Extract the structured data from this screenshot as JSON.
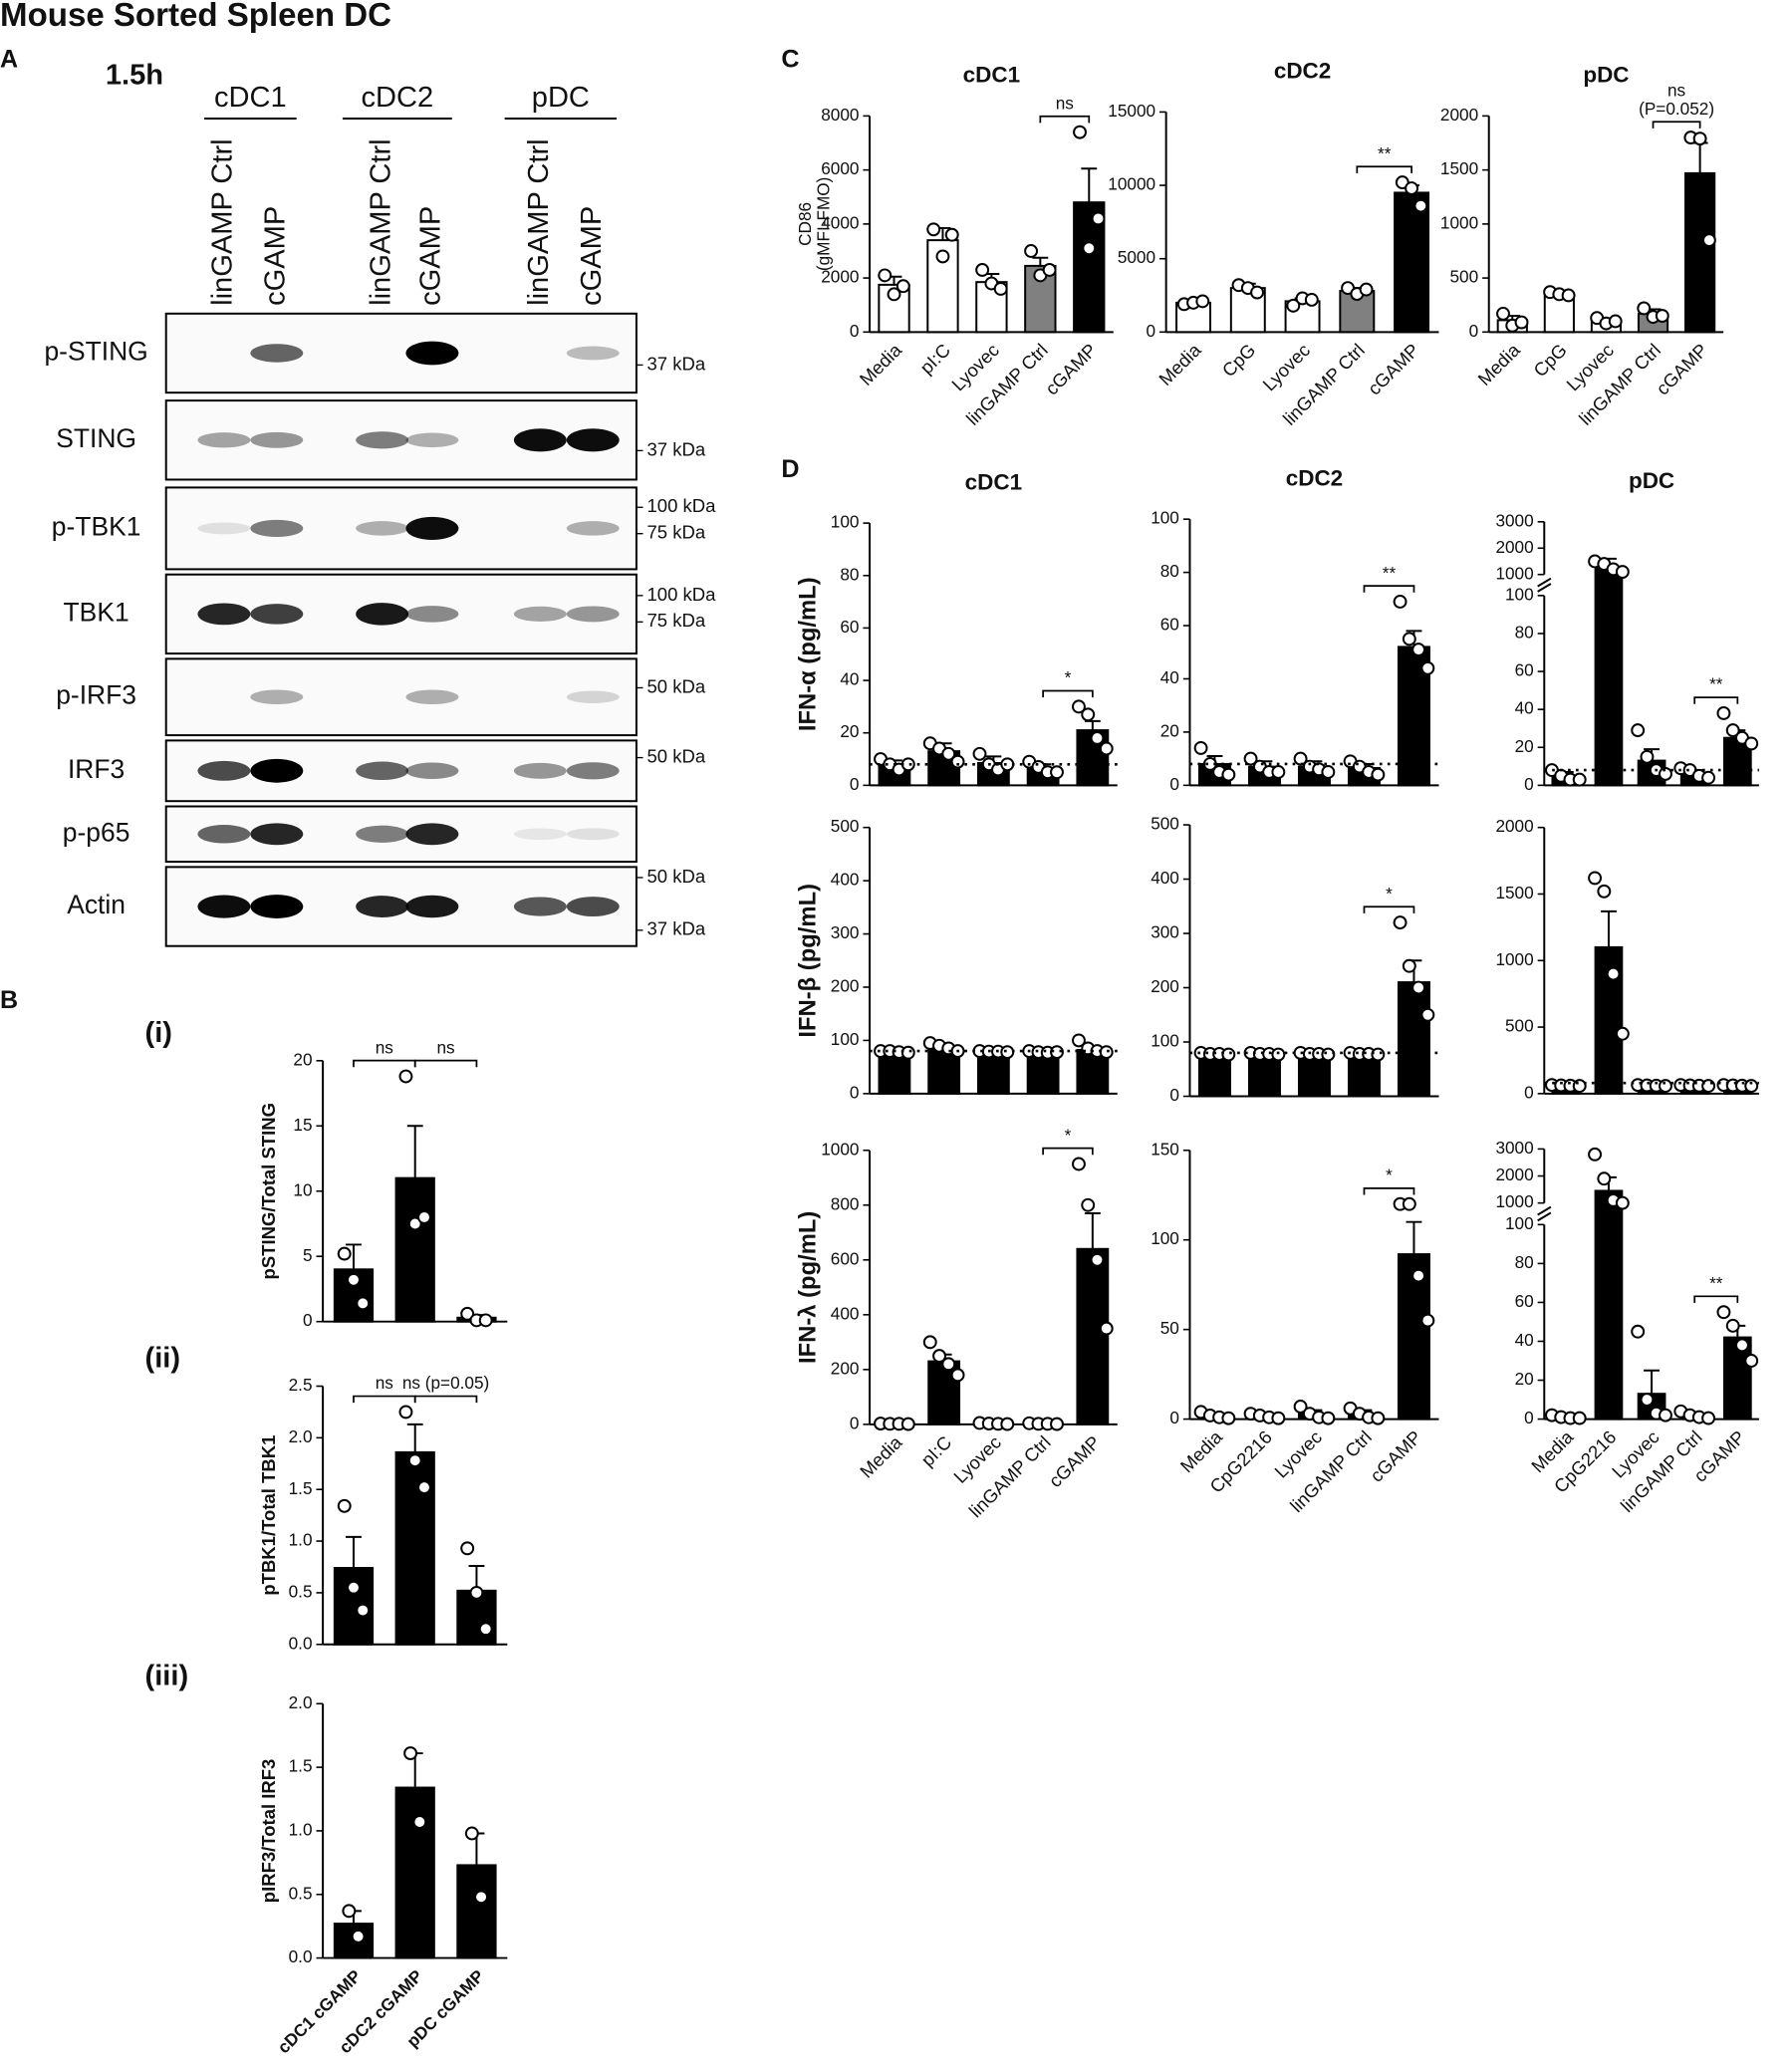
{
  "title": "Mouse Sorted Spleen DC",
  "panels": [
    "A",
    "B",
    "C",
    "D"
  ],
  "blot": {
    "timepoint": "1.5h",
    "groups": [
      "cDC1",
      "cDC2",
      "pDC"
    ],
    "lanes": [
      "linGAMP Ctrl",
      "cGAMP",
      "linGAMP Ctrl",
      "cGAMP",
      "linGAMP Ctrl",
      "cGAMP"
    ],
    "rows": [
      {
        "name": "p-STING",
        "markers": [
          "37 kDa"
        ]
      },
      {
        "name": "STING",
        "markers": [
          "37 kDa"
        ]
      },
      {
        "name": "p-TBK1",
        "markers": [
          "100 kDa",
          "75 kDa"
        ]
      },
      {
        "name": "TBK1",
        "markers": [
          "100 kDa",
          "75 kDa"
        ]
      },
      {
        "name": "p-IRF3",
        "markers": [
          "50 kDa"
        ]
      },
      {
        "name": "IRF3",
        "markers": [
          "50 kDa"
        ]
      },
      {
        "name": "p-p65",
        "markers": []
      },
      {
        "name": "Actin",
        "markers": [
          "50 kDa",
          "37 kDa"
        ]
      }
    ]
  },
  "chart_data": [
    {
      "type": "bar",
      "title": "(i)",
      "y_label": "pSTING/Total STING",
      "color": "#000000",
      "categories": [
        null,
        null,
        null
      ],
      "values": [
        4,
        11,
        0.3
      ],
      "errors": [
        1.9,
        4,
        0.2
      ],
      "points": [
        [
          5.2,
          3.2,
          1.4
        ],
        [
          18.8,
          7.5,
          8
        ],
        [
          0.6,
          0.1,
          0.1
        ]
      ],
      "ylim": [
        0,
        20
      ],
      "yticks": [
        0,
        5,
        10,
        15,
        20
      ],
      "brackets": [
        {
          "pair": [
            0,
            1
          ],
          "text": "ns"
        },
        {
          "pair": [
            1,
            2
          ],
          "text": "ns"
        }
      ]
    },
    {
      "type": "bar",
      "title": "(ii)",
      "y_label": "pTBK1/Total TBK1",
      "color": "#000000",
      "categories": [
        null,
        null,
        null
      ],
      "values": [
        0.74,
        1.86,
        0.52
      ],
      "errors": [
        0.3,
        0.27,
        0.24
      ],
      "points": [
        [
          1.34,
          0.55,
          0.33
        ],
        [
          2.25,
          1.78,
          1.52
        ],
        [
          0.93,
          0.5,
          0.15
        ]
      ],
      "ylim": [
        0,
        2.5
      ],
      "yticks": [
        {
          "value": 0,
          "label": "0.0"
        },
        0.5,
        {
          "value": 1,
          "label": "1.0"
        },
        1.5,
        {
          "value": 2,
          "label": "2.0"
        },
        2.5
      ],
      "brackets": [
        {
          "pair": [
            0,
            1
          ],
          "text": "ns"
        },
        {
          "pair": [
            1,
            2
          ],
          "text": "ns (p=0.05)"
        }
      ]
    },
    {
      "type": "bar",
      "title": "(iii)",
      "y_label": "pIRF3/Total IRF3",
      "color": "#000000",
      "categories": [
        "cDC1 cGAMP",
        "cDC2 cGAMP",
        "pDC cGAMP"
      ],
      "values": [
        0.27,
        1.34,
        0.73
      ],
      "errors": [
        0.1,
        0.27,
        0.25
      ],
      "points": [
        [
          0.37,
          0.17
        ],
        [
          1.61,
          1.07
        ],
        [
          0.98,
          0.48
        ]
      ],
      "ylim": [
        0,
        2
      ],
      "yticks": [
        {
          "value": 0,
          "label": "0.0"
        },
        0.5,
        {
          "value": 1,
          "label": "1.0"
        },
        1.5,
        {
          "value": 2,
          "label": "2.0"
        }
      ]
    },
    {
      "type": "bar",
      "title": "cDC1",
      "y_label": [
        "CD86",
        "(gMFI-FMO)"
      ],
      "colors": [
        "#ffffff",
        "#ffffff",
        "#ffffff",
        "#808080",
        "#000000"
      ],
      "categories": [
        "Media",
        "pI:C",
        "Lyovec",
        "linGAMP Ctrl",
        "cGAMP"
      ],
      "values": [
        1750,
        3400,
        1850,
        2450,
        4800
      ],
      "errors": [
        300,
        450,
        300,
        300,
        1250
      ],
      "points": [
        [
          2100,
          1400,
          1700
        ],
        [
          3800,
          2800,
          3600
        ],
        [
          2300,
          1800,
          1600
        ],
        [
          3000,
          2100,
          2300
        ],
        [
          7400,
          3100,
          4200
        ]
      ],
      "ylim": [
        0,
        8000
      ],
      "yticks": [
        0,
        2000,
        4000,
        6000,
        8000
      ],
      "brackets": [
        {
          "pair": [
            3,
            4
          ],
          "text": "ns"
        }
      ]
    },
    {
      "type": "bar",
      "title": "cDC2",
      "colors": [
        "#ffffff",
        "#ffffff",
        "#ffffff",
        "#808080",
        "#000000"
      ],
      "categories": [
        "Media",
        "CpG",
        "Lyovec",
        "linGAMP Ctrl",
        "cGAMP"
      ],
      "values": [
        2000,
        3000,
        2100,
        2800,
        9500
      ],
      "errors": [
        100,
        300,
        200,
        200,
        500
      ],
      "points": [
        [
          1900,
          2000,
          2100
        ],
        [
          3200,
          3000,
          2700
        ],
        [
          1800,
          2300,
          2200
        ],
        [
          3000,
          2600,
          2900
        ],
        [
          10200,
          9800,
          8600
        ]
      ],
      "ylim": [
        0,
        15000
      ],
      "yticks": [
        0,
        5000,
        10000,
        15000
      ],
      "brackets": [
        {
          "pair": [
            3,
            4
          ],
          "text": "**"
        }
      ]
    },
    {
      "type": "bar",
      "title": "pDC",
      "colors": [
        "#ffffff",
        "#ffffff",
        "#ffffff",
        "#808080",
        "#000000"
      ],
      "categories": [
        "Media",
        "CpG",
        "Lyovec",
        "linGAMP Ctrl",
        "cGAMP"
      ],
      "values": [
        110,
        350,
        100,
        170,
        1470
      ],
      "errors": [
        40,
        20,
        20,
        40,
        280
      ],
      "points": [
        [
          170,
          60,
          90
        ],
        [
          370,
          350,
          340
        ],
        [
          130,
          80,
          100
        ],
        [
          220,
          140,
          150
        ],
        [
          1800,
          1790,
          850
        ]
      ],
      "ylim": [
        0,
        2000
      ],
      "yticks": [
        0,
        500,
        1000,
        1500,
        2000
      ],
      "brackets": [
        {
          "pair": [
            3,
            4
          ],
          "text": [
            "ns",
            "(P=0.052)"
          ]
        }
      ]
    },
    {
      "type": "bar",
      "title": "cDC1",
      "y_label": "IFN-α (pg/mL)",
      "color": "#000000",
      "categories": [
        null,
        null,
        null,
        null,
        null
      ],
      "values": [
        8,
        13,
        8.5,
        6.5,
        21
      ],
      "errors": [
        1.5,
        3,
        2.5,
        1.5,
        3.5
      ],
      "points": [
        [
          10,
          8,
          6,
          8
        ],
        [
          16,
          14,
          12,
          9
        ],
        [
          12,
          8,
          6,
          8
        ],
        [
          9,
          7,
          5,
          5
        ],
        [
          30,
          27,
          18,
          14
        ]
      ],
      "ylim": [
        0,
        100
      ],
      "yticks": [
        0,
        20,
        40,
        60,
        80,
        100
      ],
      "reference_line": 8,
      "brackets": [
        {
          "pair": [
            3,
            4
          ],
          "text": "*"
        }
      ]
    },
    {
      "type": "bar",
      "title": "cDC2",
      "color": "#000000",
      "categories": [
        null,
        null,
        null,
        null,
        null
      ],
      "values": [
        8,
        7,
        7,
        6.5,
        52
      ],
      "errors": [
        3,
        2,
        2,
        1.5,
        6
      ],
      "points": [
        [
          14,
          8,
          5,
          4
        ],
        [
          10,
          7,
          5,
          5
        ],
        [
          10,
          7,
          6,
          5
        ],
        [
          9,
          7,
          5,
          4
        ],
        [
          69,
          55,
          51,
          44
        ]
      ],
      "ylim": [
        0,
        100
      ],
      "yticks": [
        0,
        20,
        40,
        60,
        80,
        100
      ],
      "reference_line": 8,
      "brackets": [
        {
          "pair": [
            3,
            4
          ],
          "text": "**"
        }
      ]
    },
    {
      "type": "bar",
      "title": "pDC",
      "color": "#000000",
      "categories": [
        null,
        null,
        null,
        null,
        null
      ],
      "values": [
        5,
        1300,
        13,
        6.5,
        25
      ],
      "errors": [
        2,
        300,
        6,
        1.5,
        4
      ],
      "points": [
        [
          8,
          5,
          3,
          3
        ],
        [
          1500,
          1400,
          1200,
          1100
        ],
        [
          29,
          15,
          8,
          6
        ],
        [
          9,
          8,
          5,
          4
        ],
        [
          38,
          29,
          25,
          22
        ]
      ],
      "ylim": [
        0,
        100
      ],
      "yticks": [
        0,
        20,
        40,
        60,
        80,
        100
      ],
      "y_break": {
        "ylim": [
          1000,
          3000
        ],
        "yticks": [
          1000,
          2000,
          3000
        ]
      },
      "reference_line": 8,
      "brackets": [
        {
          "pair": [
            3,
            4
          ],
          "text": "**"
        }
      ]
    },
    {
      "type": "bar",
      "y_label": "IFN-β (pg/mL)",
      "color": "#000000",
      "categories": [
        null,
        null,
        null,
        null,
        null
      ],
      "values": [
        78,
        85,
        78,
        78,
        82
      ],
      "errors": [
        2,
        5,
        1,
        2,
        6
      ],
      "points": [
        [
          80,
          80,
          78,
          77
        ],
        [
          95,
          90,
          85,
          80
        ],
        [
          80,
          79,
          79,
          78
        ],
        [
          80,
          78,
          77,
          78
        ],
        [
          100,
          85,
          80,
          78
        ]
      ],
      "ylim": [
        0,
        500
      ],
      "yticks": [
        0,
        100,
        200,
        300,
        400,
        500
      ],
      "reference_line": 80
    },
    {
      "type": "bar",
      "color": "#000000",
      "categories": [
        null,
        null,
        null,
        null,
        null
      ],
      "values": [
        78,
        78,
        78,
        78,
        210
      ],
      "errors": [
        1,
        1,
        1,
        1,
        40
      ],
      "points": [
        [
          80,
          78,
          78,
          77
        ],
        [
          80,
          78,
          78,
          77
        ],
        [
          80,
          78,
          78,
          77
        ],
        [
          80,
          78,
          78,
          77
        ],
        [
          320,
          240,
          200,
          150
        ]
      ],
      "ylim": [
        0,
        500
      ],
      "yticks": [
        0,
        100,
        200,
        300,
        400,
        500
      ],
      "reference_line": 80,
      "brackets": [
        {
          "pair": [
            3,
            4
          ],
          "text": "*"
        }
      ]
    },
    {
      "type": "bar",
      "color": "#000000",
      "categories": [
        null,
        null,
        null,
        null,
        null
      ],
      "values": [
        60,
        1100,
        60,
        60,
        60
      ],
      "errors": [
        5,
        270,
        5,
        5,
        5
      ],
      "points": [
        [
          65,
          62,
          60,
          58
        ],
        [
          1620,
          1520,
          900,
          450
        ],
        [
          65,
          62,
          60,
          58
        ],
        [
          65,
          62,
          60,
          58
        ],
        [
          65,
          62,
          60,
          58
        ]
      ],
      "ylim": [
        0,
        2000
      ],
      "yticks": [
        0,
        500,
        1000,
        1500,
        2000
      ],
      "reference_line": 80
    },
    {
      "type": "bar",
      "y_label": "IFN-λ (pg/mL)",
      "color": "#000000",
      "categories": [
        "Media",
        "pI:C",
        "Lyovec",
        "linGAMP Ctrl",
        "cGAMP"
      ],
      "values": [
        2,
        230,
        2,
        2,
        640
      ],
      "errors": [
        1,
        25,
        1,
        1,
        130
      ],
      "points": [
        [
          3,
          2,
          2,
          1
        ],
        [
          300,
          250,
          220,
          180
        ],
        [
          5,
          3,
          2,
          1
        ],
        [
          4,
          2,
          2,
          1
        ],
        [
          950,
          800,
          600,
          350
        ]
      ],
      "ylim": [
        0,
        1000
      ],
      "yticks": [
        0,
        200,
        400,
        600,
        800,
        1000
      ],
      "brackets": [
        {
          "pair": [
            3,
            4
          ],
          "text": "*"
        }
      ]
    },
    {
      "type": "bar",
      "color": "#000000",
      "categories": [
        "Media",
        "CpG2216",
        "Lyovec",
        "linGAMP Ctrl",
        "cGAMP"
      ],
      "values": [
        2,
        2,
        3,
        3,
        92
      ],
      "errors": [
        1,
        1,
        2,
        2,
        18
      ],
      "points": [
        [
          4,
          2,
          1,
          0.5
        ],
        [
          3,
          2,
          1,
          0.5
        ],
        [
          7,
          3,
          1,
          0.5
        ],
        [
          6,
          3,
          1,
          0.5
        ],
        [
          120,
          120,
          80,
          55
        ]
      ],
      "ylim": [
        0,
        150
      ],
      "yticks": [
        0,
        50,
        100,
        150
      ],
      "brackets": [
        {
          "pair": [
            3,
            4
          ],
          "text": "*"
        }
      ]
    },
    {
      "type": "bar",
      "color": "#000000",
      "categories": [
        "Media",
        "CpG2216",
        "Lyovec",
        "linGAMP Ctrl",
        "cGAMP"
      ],
      "values": [
        1,
        1450,
        13,
        2,
        42
      ],
      "errors": [
        0.5,
        500,
        12,
        1,
        6
      ],
      "points": [
        [
          2,
          1,
          0.5,
          0.5
        ],
        [
          2800,
          1900,
          1100,
          1000
        ],
        [
          45,
          10,
          3,
          2
        ],
        [
          4,
          2,
          1,
          0.5
        ],
        [
          55,
          48,
          38,
          30
        ]
      ],
      "ylim": [
        0,
        100
      ],
      "yticks": [
        0,
        20,
        40,
        60,
        80,
        100
      ],
      "y_break": {
        "ylim": [
          1000,
          3000
        ],
        "yticks": [
          1000,
          2000,
          3000
        ]
      },
      "brackets": [
        {
          "pair": [
            3,
            4
          ],
          "text": "**"
        }
      ]
    }
  ]
}
